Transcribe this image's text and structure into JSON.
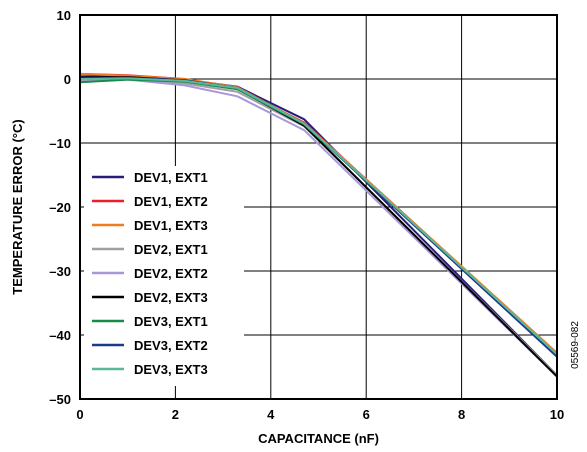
{
  "chart_data": {
    "type": "line",
    "xlabel": "CAPACITANCE (nF)",
    "ylabel": "TEMPERATURE ERROR (°C)",
    "xlim": [
      0,
      10
    ],
    "ylim": [
      -50,
      10
    ],
    "xticks": [
      0,
      2,
      4,
      6,
      8,
      10
    ],
    "yticks": [
      -50,
      -40,
      -30,
      -20,
      -10,
      0,
      10
    ],
    "xtick_labels": [
      "0",
      "2",
      "4",
      "6",
      "8",
      "10"
    ],
    "ytick_labels": [
      "–50",
      "–40",
      "–30",
      "–20",
      "–10",
      "0",
      "10"
    ],
    "grid": true,
    "legend_position": "left",
    "figure_id": "05569-082",
    "x": [
      0,
      1,
      2.2,
      3.3,
      4.7,
      10
    ],
    "series": [
      {
        "name": "DEV1, EXT1",
        "color": "#2a1a7a",
        "values": [
          0.4,
          0.5,
          -0.1,
          -1.2,
          -6.3,
          -46.3
        ]
      },
      {
        "name": "DEV1, EXT2",
        "color": "#e8202a",
        "values": [
          0.8,
          0.6,
          0.0,
          -1.5,
          -6.8,
          -43.0
        ]
      },
      {
        "name": "DEV1, EXT3",
        "color": "#f07c22",
        "values": [
          0.8,
          0.5,
          0.0,
          -1.3,
          -6.9,
          -42.8
        ]
      },
      {
        "name": "DEV2, EXT1",
        "color": "#a0a0a0",
        "values": [
          -0.3,
          0.1,
          -0.7,
          -2.0,
          -7.4,
          -46.3
        ]
      },
      {
        "name": "DEV2, EXT2",
        "color": "#a898d8",
        "values": [
          -0.4,
          -0.1,
          -1.0,
          -2.7,
          -8.0,
          -46.5
        ]
      },
      {
        "name": "DEV2, EXT3",
        "color": "#000000",
        "values": [
          0.2,
          0.3,
          -0.2,
          -1.5,
          -7.3,
          -46.5
        ]
      },
      {
        "name": "DEV3, EXT1",
        "color": "#1a8a4a",
        "values": [
          -0.5,
          -0.1,
          -0.4,
          -1.6,
          -7.1,
          -43.3
        ]
      },
      {
        "name": "DEV3, EXT2",
        "color": "#1a3a8a",
        "values": [
          0.1,
          0.2,
          -0.2,
          -1.4,
          -7.0,
          -43.4
        ]
      },
      {
        "name": "DEV3, EXT3",
        "color": "#5ab89a",
        "values": [
          0.0,
          0.1,
          -0.3,
          -1.4,
          -7.0,
          -43.0
        ]
      }
    ]
  }
}
